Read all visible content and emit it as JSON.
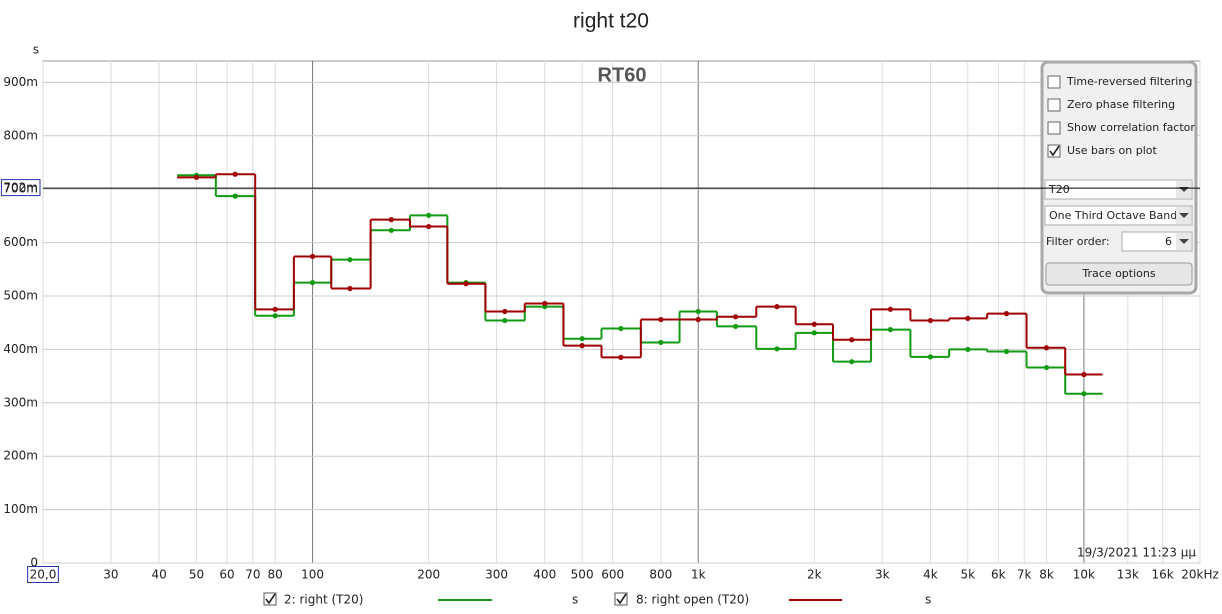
{
  "chart_data": {
    "type": "step",
    "title": "right t20",
    "annotation": "RT60",
    "ylabel": "s",
    "timestamp": "19/3/2021 11:23 μμ",
    "x": [
      50,
      63,
      80,
      100,
      125,
      160,
      200,
      250,
      315,
      400,
      500,
      630,
      800,
      1000,
      1250,
      1600,
      2000,
      2500,
      3150,
      4000,
      5000,
      6300,
      8000,
      10000
    ],
    "series": [
      {
        "name": "2: right (T20)",
        "unit": "s",
        "color": "#139a13",
        "values": [
          0.726,
          0.687,
          0.463,
          0.525,
          0.568,
          0.623,
          0.651,
          0.525,
          0.454,
          0.48,
          0.42,
          0.439,
          0.413,
          0.471,
          0.443,
          0.401,
          0.431,
          0.377,
          0.437,
          0.386,
          0.4,
          0.396,
          0.366,
          0.317
        ]
      },
      {
        "name": "8: right open (T20)",
        "unit": "s",
        "color": "#a00000",
        "values": [
          0.722,
          0.728,
          0.475,
          0.574,
          0.514,
          0.643,
          0.63,
          0.523,
          0.471,
          0.486,
          0.407,
          0.385,
          0.456,
          0.456,
          0.461,
          0.48,
          0.447,
          0.418,
          0.475,
          0.454,
          0.458,
          0.467,
          0.403,
          0.353
        ]
      }
    ],
    "xlim": [
      20,
      20000
    ],
    "log_x": true,
    "xticks": [
      {
        "value": 20,
        "label": "20,0"
      },
      30,
      40,
      50,
      60,
      70,
      80,
      100,
      200,
      300,
      400,
      500,
      600,
      800,
      {
        "value": 1000,
        "label": "1k"
      },
      {
        "value": 2000,
        "label": "2k"
      },
      {
        "value": 3000,
        "label": "3k"
      },
      {
        "value": 4000,
        "label": "4k"
      },
      {
        "value": 5000,
        "label": "5k"
      },
      {
        "value": 6000,
        "label": "6k"
      },
      {
        "value": 7000,
        "label": "7k"
      },
      {
        "value": 8000,
        "label": "8k"
      },
      {
        "value": 10000,
        "label": "10k"
      },
      {
        "value": 13000,
        "label": "13k"
      },
      {
        "value": 16000,
        "label": "16k"
      },
      {
        "value": 20000,
        "label": "20kHz"
      }
    ],
    "ylim": [
      0,
      0.94
    ],
    "yticks": [
      0,
      {
        "value": 0.1,
        "label": "100m"
      },
      {
        "value": 0.2,
        "label": "200m"
      },
      {
        "value": 0.3,
        "label": "300m"
      },
      {
        "value": 0.4,
        "label": "400m"
      },
      {
        "value": 0.5,
        "label": "500m"
      },
      {
        "value": 0.6,
        "label": "600m"
      },
      {
        "value": 0.7,
        "label": "700m"
      },
      {
        "value": 0.8,
        "label": "800m"
      },
      {
        "value": 0.9,
        "label": "900m"
      }
    ],
    "cursor": {
      "value": 0.702,
      "label": "702m"
    },
    "grid": true
  },
  "panel": {
    "checkboxes": [
      {
        "label": "Time-reversed filtering",
        "checked": false
      },
      {
        "label": "Zero phase filtering",
        "checked": false
      },
      {
        "label": "Show correlation factor",
        "checked": false
      },
      {
        "label": "Use bars on plot",
        "checked": true
      }
    ],
    "type_select": "T20",
    "band_select": "One Third Octave Bands",
    "filter_order_label": "Filter order:",
    "filter_order": "6",
    "button": "Trace options"
  }
}
